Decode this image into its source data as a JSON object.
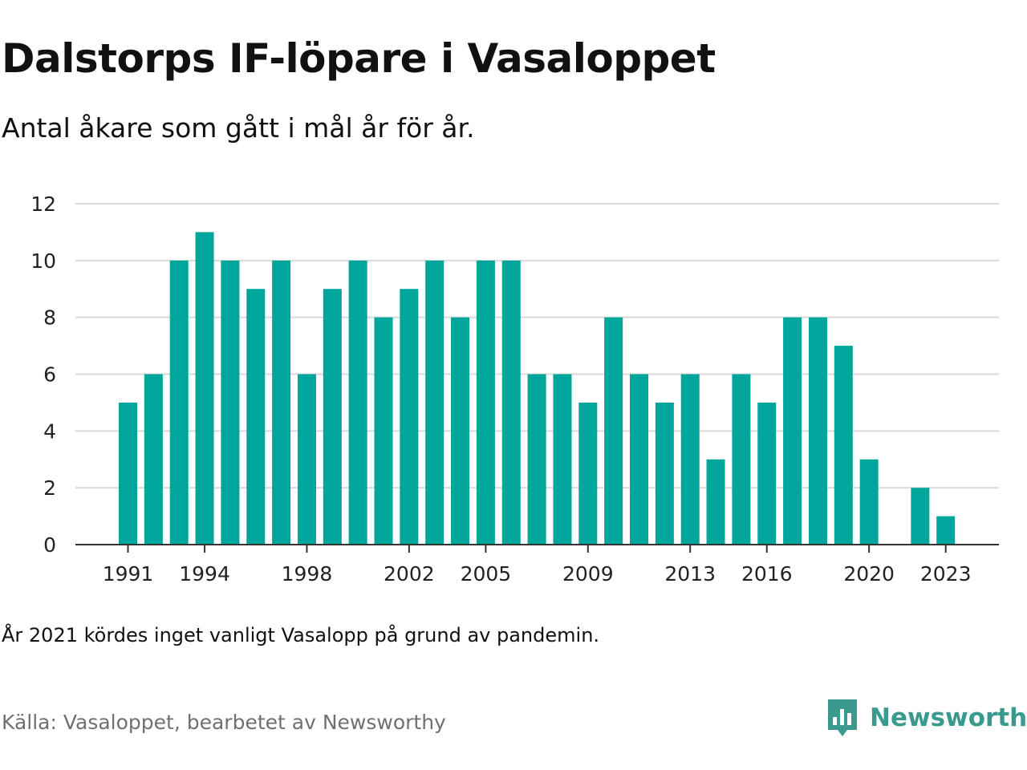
{
  "header": {
    "title": "Dalstorps IF-löpare i Vasaloppet",
    "subtitle": "Antal åkare som gått i mål år för år."
  },
  "footer": {
    "note": "År 2021 kördes inget vanligt Vasalopp på grund av pandemin.",
    "source": "Källa: Vasaloppet, bearbetet av Newsworthy",
    "logo_text": "Newsworthy"
  },
  "colors": {
    "bar": "#00a59b",
    "grid": "#d9d9d9",
    "axis": "#333333",
    "logo": "#3a9a8e"
  },
  "icons": {
    "logo": "newsworthy-chart-bubble-icon"
  },
  "chart_data": {
    "type": "bar",
    "x": [
      1991,
      1992,
      1993,
      1994,
      1995,
      1996,
      1997,
      1998,
      1999,
      2000,
      2001,
      2002,
      2003,
      2004,
      2005,
      2006,
      2007,
      2008,
      2009,
      2010,
      2011,
      2012,
      2013,
      2014,
      2015,
      2016,
      2017,
      2018,
      2019,
      2020,
      2021,
      2022,
      2023
    ],
    "values": [
      5,
      6,
      10,
      11,
      10,
      9,
      10,
      6,
      9,
      10,
      8,
      9,
      10,
      8,
      10,
      10,
      6,
      6,
      5,
      8,
      6,
      5,
      6,
      3,
      6,
      5,
      8,
      8,
      7,
      3,
      null,
      2,
      1
    ],
    "x_ticks": [
      1991,
      1994,
      1998,
      2002,
      2005,
      2009,
      2013,
      2016,
      2020,
      2023
    ],
    "y_ticks": [
      0,
      2,
      4,
      6,
      8,
      10,
      12
    ],
    "ylim": [
      0,
      12
    ],
    "grid": true
  }
}
